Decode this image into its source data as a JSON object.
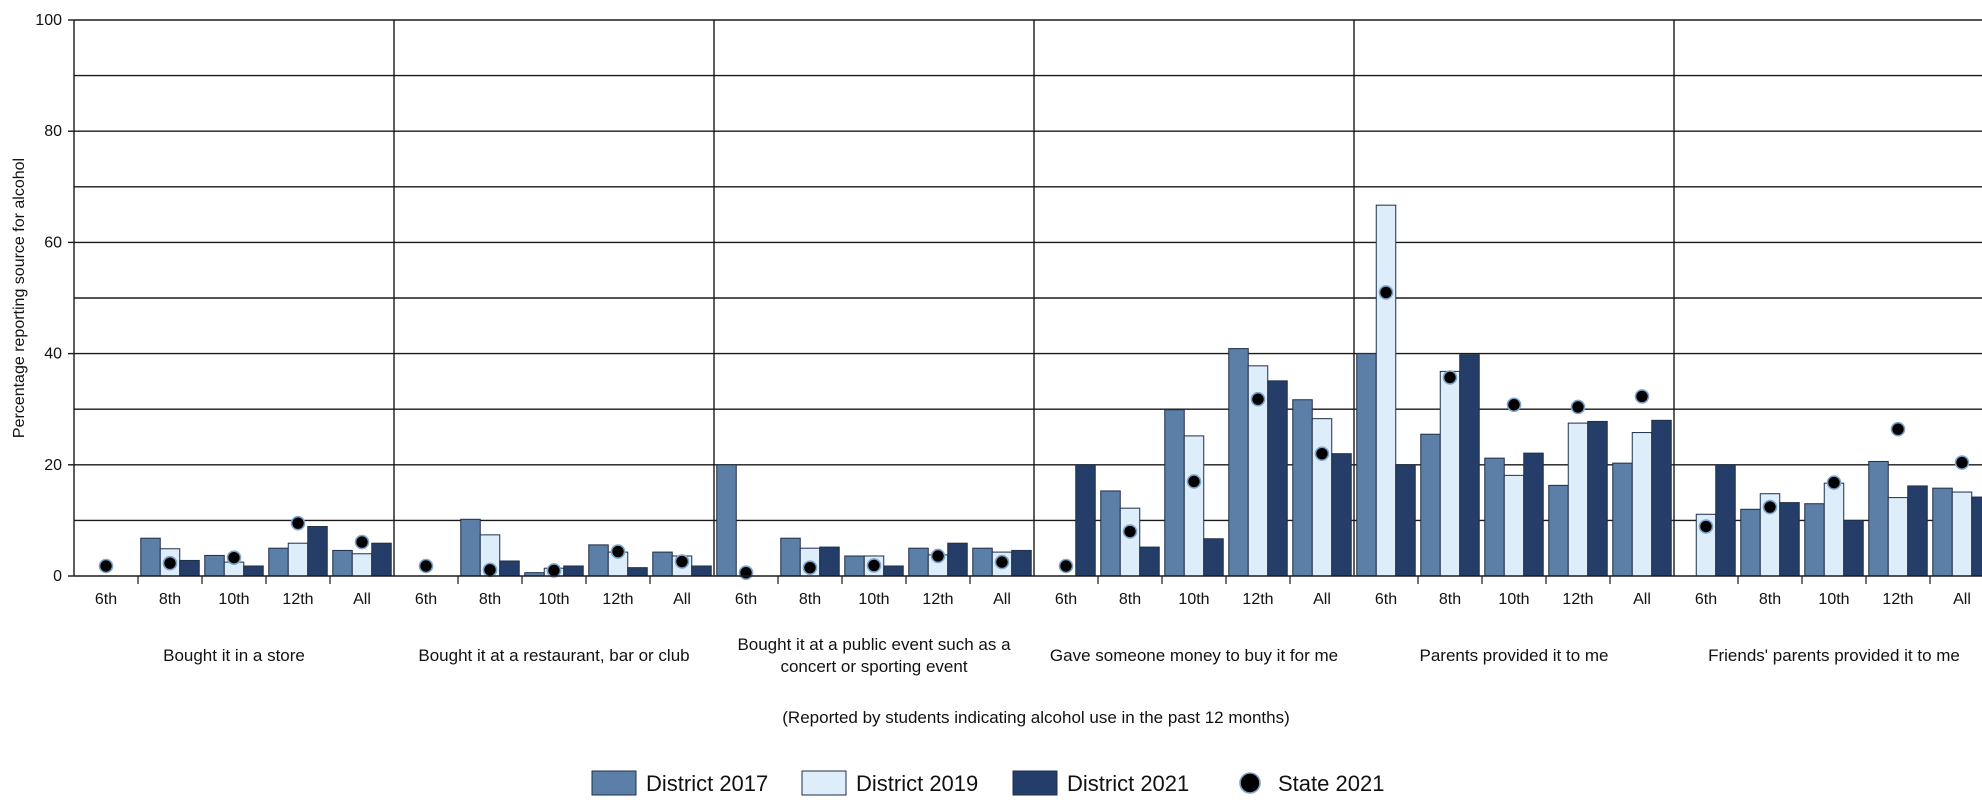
{
  "chart_data": {
    "type": "bar",
    "ylabel": "Percentage reporting source for alcohol",
    "note": "(Reported by students indicating alcohol use in the past 12 months)",
    "ylim": [
      0,
      100
    ],
    "yticks": [
      0,
      20,
      40,
      60,
      80,
      100
    ],
    "grid_lines": [
      10,
      20,
      30,
      40,
      50,
      60,
      70,
      80,
      90,
      100
    ],
    "grades": [
      "6th",
      "8th",
      "10th",
      "12th",
      "All"
    ],
    "colors": {
      "District 2017": "#5b7fa6",
      "District 2019": "#ddeefa",
      "District 2021": "#243e69",
      "State 2021": "#000000"
    },
    "legend": {
      "position": "bottom-center",
      "items": [
        "District 2017",
        "District 2019",
        "District 2021",
        "State 2021"
      ]
    },
    "groups": [
      {
        "category": "Bought it in a store",
        "District 2017": [
          0,
          6.8,
          3.7,
          5.0,
          4.6
        ],
        "District 2019": [
          0,
          4.9,
          2.5,
          5.9,
          4.0
        ],
        "District 2021": [
          0,
          2.8,
          1.8,
          8.9,
          5.9
        ],
        "State 2021": [
          1.8,
          2.3,
          3.3,
          9.5,
          6.1
        ]
      },
      {
        "category": "Bought it at a restaurant, bar or club",
        "District 2017": [
          0,
          10.2,
          0.6,
          5.6,
          4.3
        ],
        "District 2019": [
          0,
          7.4,
          1.4,
          4.3,
          3.6
        ],
        "District 2021": [
          0,
          2.7,
          1.8,
          1.5,
          1.8
        ],
        "State 2021": [
          1.8,
          1.1,
          1.0,
          4.4,
          2.6
        ]
      },
      {
        "category": "Bought it at a public event such as a concert or sporting event",
        "category_lines": [
          "Bought it at a public event such as a",
          "concert or sporting event"
        ],
        "District 2017": [
          20.0,
          6.8,
          3.6,
          5.0,
          5.0
        ],
        "District 2019": [
          0,
          5.0,
          3.6,
          3.8,
          4.3
        ],
        "District 2021": [
          0,
          5.2,
          1.8,
          5.9,
          4.6
        ],
        "State 2021": [
          0.6,
          1.5,
          1.9,
          3.6,
          2.5
        ]
      },
      {
        "category": "Gave someone money to buy it for me",
        "District 2017": [
          0,
          15.3,
          29.9,
          40.9,
          31.7
        ],
        "District 2019": [
          0,
          12.2,
          25.2,
          37.8,
          28.3
        ],
        "District 2021": [
          20.0,
          5.2,
          6.7,
          35.1,
          22.0
        ],
        "State 2021": [
          1.8,
          8.0,
          17.0,
          31.8,
          22.0
        ]
      },
      {
        "category": "Parents provided it to me",
        "District 2017": [
          40.0,
          25.5,
          21.2,
          16.3,
          20.3
        ],
        "District 2019": [
          66.7,
          36.8,
          18.1,
          27.5,
          25.8
        ],
        "District 2021": [
          20.0,
          39.8,
          22.1,
          27.8,
          28.0
        ],
        "State 2021": [
          51.0,
          35.7,
          30.8,
          30.4,
          32.3
        ]
      },
      {
        "category": "Friends' parents provided it to me",
        "District 2017": [
          0,
          12.0,
          13.0,
          20.6,
          15.8
        ],
        "District 2019": [
          11.1,
          14.8,
          16.7,
          14.1,
          15.1
        ],
        "District 2021": [
          20.0,
          13.2,
          10.0,
          16.2,
          14.2
        ],
        "State 2021": [
          8.9,
          12.4,
          16.8,
          26.4,
          20.4
        ]
      }
    ]
  }
}
